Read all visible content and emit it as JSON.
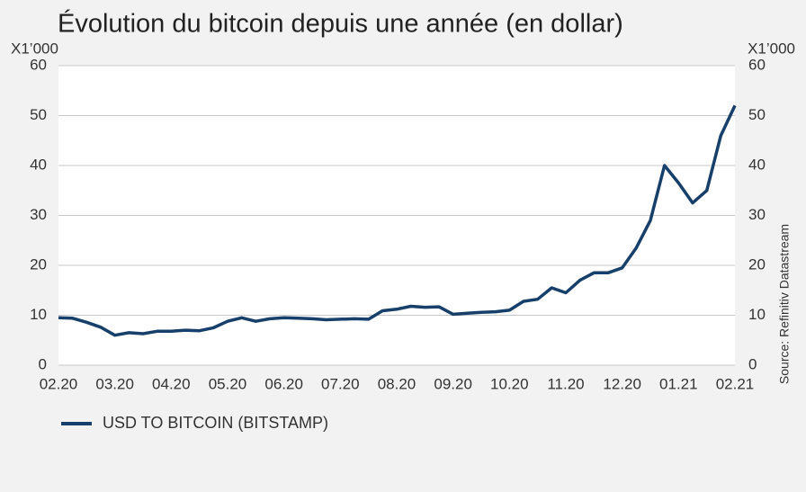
{
  "chart_data": {
    "type": "line",
    "title": "Évolution du bitcoin depuis une année (en dollar)",
    "ylabel": "X1’000",
    "y2label": "X1’000",
    "source": "Source: Refinitiv Datastream",
    "categories": [
      "02.20",
      null,
      null,
      null,
      "03.20",
      null,
      null,
      null,
      "04.20",
      null,
      null,
      null,
      "05.20",
      null,
      null,
      null,
      "06.20",
      null,
      null,
      null,
      "07.20",
      null,
      null,
      null,
      "08.20",
      null,
      null,
      null,
      "09.20",
      null,
      null,
      null,
      "10.20",
      null,
      null,
      null,
      "11.20",
      null,
      null,
      null,
      "12.20",
      null,
      null,
      null,
      "01.21",
      null,
      null,
      null,
      "02.21"
    ],
    "series": [
      {
        "name": "USD TO BITCOIN (BITSTAMP)",
        "color": "#173f6b",
        "values": [
          9.5,
          9.4,
          8.6,
          7.6,
          6.0,
          6.5,
          6.3,
          6.8,
          6.8,
          7.0,
          6.9,
          7.5,
          8.8,
          9.5,
          8.8,
          9.3,
          9.5,
          9.4,
          9.3,
          9.1,
          9.2,
          9.3,
          9.2,
          10.9,
          11.2,
          11.8,
          11.6,
          11.7,
          10.2,
          10.4,
          10.6,
          10.7,
          11.0,
          12.8,
          13.2,
          15.5,
          14.5,
          17.0,
          18.5,
          18.5,
          19.5,
          23.5,
          29.0,
          40.0,
          36.5,
          32.5,
          35.0,
          46.0,
          52.0
        ]
      }
    ],
    "ylim": [
      0,
      60
    ],
    "yticks": [
      0,
      10,
      20,
      30,
      40,
      50,
      60
    ],
    "y2lim": [
      0,
      60
    ],
    "y2ticks": [
      0,
      10,
      20,
      30,
      40,
      50,
      60
    ],
    "grid": true
  }
}
